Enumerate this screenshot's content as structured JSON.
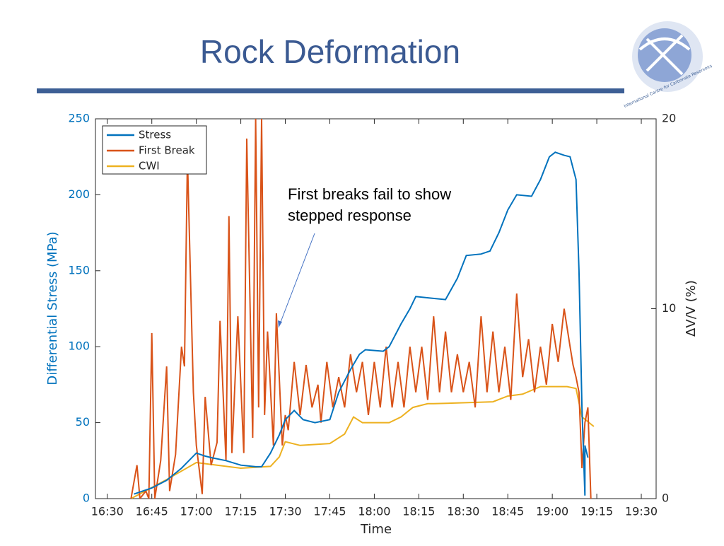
{
  "slide": {
    "title": "Rock Deformation",
    "logo_text": "International Centre for Carbonate Reservoirs"
  },
  "chart_data": {
    "type": "line",
    "xlabel": "Time",
    "ylabel": "Differential Stress (MPa)",
    "y2label": "ΔV/V (%)",
    "xlim": [
      "16:26",
      "19:35"
    ],
    "xticks": [
      "16:30",
      "16:45",
      "17:00",
      "17:15",
      "17:30",
      "17:45",
      "18:00",
      "18:15",
      "18:30",
      "18:45",
      "19:00",
      "19:15",
      "19:30"
    ],
    "ylim": [
      0,
      250
    ],
    "yticks": [
      0,
      50,
      100,
      150,
      200,
      250
    ],
    "y2lim": [
      0,
      20
    ],
    "y2ticks": [
      0,
      10,
      20
    ],
    "legend": "upper-left",
    "annotation": [
      "First breaks fail to show",
      "stepped response"
    ],
    "series": [
      {
        "name": "Stress",
        "color": "#0072bd",
        "x": [
          "16:39",
          "16:45",
          "16:50",
          "16:55",
          "17:00",
          "17:03",
          "17:05",
          "17:10",
          "17:15",
          "17:20",
          "17:22",
          "17:25",
          "17:28",
          "17:30",
          "17:33",
          "17:36",
          "17:40",
          "17:45",
          "17:48",
          "17:52",
          "17:55",
          "17:57",
          "18:03",
          "18:05",
          "18:09",
          "18:12",
          "18:14",
          "18:19",
          "18:24",
          "18:28",
          "18:31",
          "18:36",
          "18:39",
          "18:42",
          "18:45",
          "18:48",
          "18:53",
          "18:56",
          "18:59",
          "19:01",
          "19:04",
          "19:06",
          "19:08",
          "19:09",
          "19:10",
          "19:11",
          "19:11",
          "19:12"
        ],
        "values": [
          3,
          7,
          12,
          20,
          30,
          28,
          27,
          25,
          22,
          21,
          21,
          30,
          42,
          52,
          58,
          52,
          50,
          52,
          70,
          85,
          95,
          98,
          97,
          100,
          115,
          125,
          133,
          132,
          131,
          145,
          160,
          161,
          163,
          175,
          190,
          200,
          199,
          210,
          225,
          228,
          226,
          225,
          210,
          150,
          60,
          2,
          35,
          27
        ]
      },
      {
        "name": "First Break",
        "color": "#d95319",
        "x": [
          "16:38",
          "16:40",
          "16:41",
          "16:43",
          "16:44",
          "16:45",
          "16:46",
          "16:48",
          "16:50",
          "16:51",
          "16:53",
          "16:55",
          "16:56",
          "16:57",
          "16:59",
          "17:00",
          "17:02",
          "17:03",
          "17:05",
          "17:07",
          "17:08",
          "17:10",
          "17:11",
          "17:12",
          "17:14",
          "17:16",
          "17:17",
          "17:19",
          "17:20",
          "17:21",
          "17:22",
          "17:23",
          "17:24",
          "17:26",
          "17:27",
          "17:29",
          "17:30",
          "17:31",
          "17:33",
          "17:35",
          "17:37",
          "17:39",
          "17:41",
          "17:42",
          "17:44",
          "17:46",
          "17:48",
          "17:50",
          "17:52",
          "17:54",
          "17:56",
          "17:58",
          "18:00",
          "18:02",
          "18:04",
          "18:06",
          "18:08",
          "18:10",
          "18:12",
          "18:14",
          "18:16",
          "18:18",
          "18:20",
          "18:22",
          "18:24",
          "18:26",
          "18:28",
          "18:30",
          "18:32",
          "18:34",
          "18:36",
          "18:38",
          "18:40",
          "18:42",
          "18:44",
          "18:46",
          "18:48",
          "18:50",
          "18:52",
          "18:54",
          "18:56",
          "18:58",
          "19:00",
          "19:02",
          "19:04",
          "19:06",
          "19:07",
          "19:08",
          "19:09",
          "19:10",
          "19:11",
          "19:12",
          "19:13"
        ],
        "values": [
          0,
          22,
          0,
          5,
          0,
          109,
          0,
          25,
          87,
          5,
          29,
          100,
          87,
          225,
          70,
          35,
          3,
          67,
          22,
          37,
          117,
          25,
          186,
          30,
          120,
          30,
          237,
          40,
          250,
          60,
          250,
          55,
          110,
          35,
          122,
          35,
          55,
          45,
          90,
          55,
          88,
          60,
          75,
          50,
          90,
          60,
          80,
          60,
          95,
          70,
          90,
          55,
          90,
          60,
          100,
          60,
          90,
          60,
          100,
          70,
          100,
          65,
          120,
          70,
          110,
          70,
          95,
          70,
          90,
          60,
          120,
          70,
          110,
          70,
          100,
          65,
          135,
          80,
          105,
          70,
          100,
          75,
          115,
          90,
          125,
          100,
          88,
          80,
          70,
          20,
          50,
          60,
          0
        ]
      },
      {
        "name": "CWI",
        "color": "#edb120",
        "axis": "y2",
        "x": [
          "16:38",
          "16:50",
          "17:00",
          "17:15",
          "17:25",
          "17:28",
          "17:30",
          "17:35",
          "17:45",
          "17:50",
          "17:53",
          "17:56",
          "18:05",
          "18:09",
          "18:13",
          "18:18",
          "18:20",
          "18:40",
          "18:45",
          "18:50",
          "18:56",
          "19:05",
          "19:08",
          "19:10",
          "19:14"
        ],
        "values": [
          0,
          1.0,
          1.9,
          1.6,
          1.7,
          2.2,
          3.0,
          2.8,
          2.9,
          3.4,
          4.3,
          4.0,
          4.0,
          4.3,
          4.8,
          5.0,
          5.0,
          5.1,
          5.4,
          5.5,
          5.9,
          5.9,
          5.8,
          4.3,
          3.8
        ]
      }
    ]
  }
}
